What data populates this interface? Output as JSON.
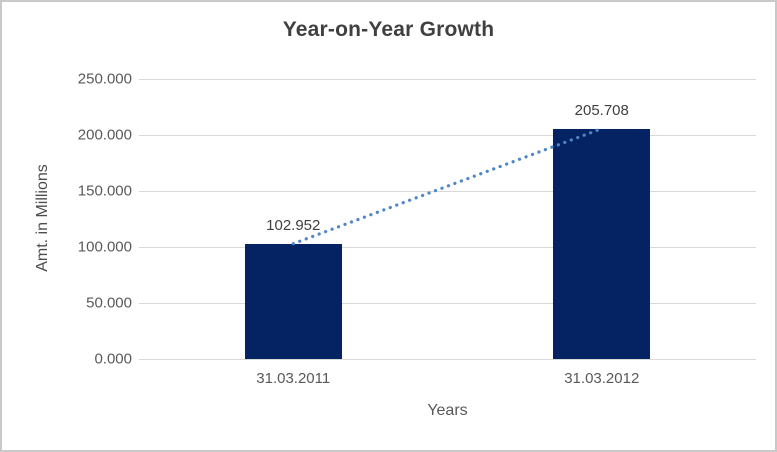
{
  "chart_data": {
    "type": "bar",
    "title": "Year-on-Year Growth",
    "xlabel": "Years",
    "ylabel": "Amt. in Millions",
    "categories": [
      "31.03.2011",
      "31.03.2012"
    ],
    "values": [
      102.952,
      205.708
    ],
    "data_labels": [
      "102.952",
      "205.708"
    ],
    "ytick_values": [
      0,
      50,
      100,
      150,
      200,
      250
    ],
    "ytick_labels": [
      "0.000",
      "50.000",
      "100.000",
      "150.000",
      "200.000",
      "250.000"
    ],
    "ylim": [
      0,
      250
    ],
    "grid": true,
    "legend": "none",
    "trendline": {
      "style": "dotted",
      "color": "#4e86c8"
    },
    "colors": {
      "bar": "#052262",
      "gridline": "#d9d9d9",
      "title_text": "#404040",
      "axis_text": "#595959",
      "frame_border": "#c9c9c9",
      "background": "#ffffff"
    }
  }
}
